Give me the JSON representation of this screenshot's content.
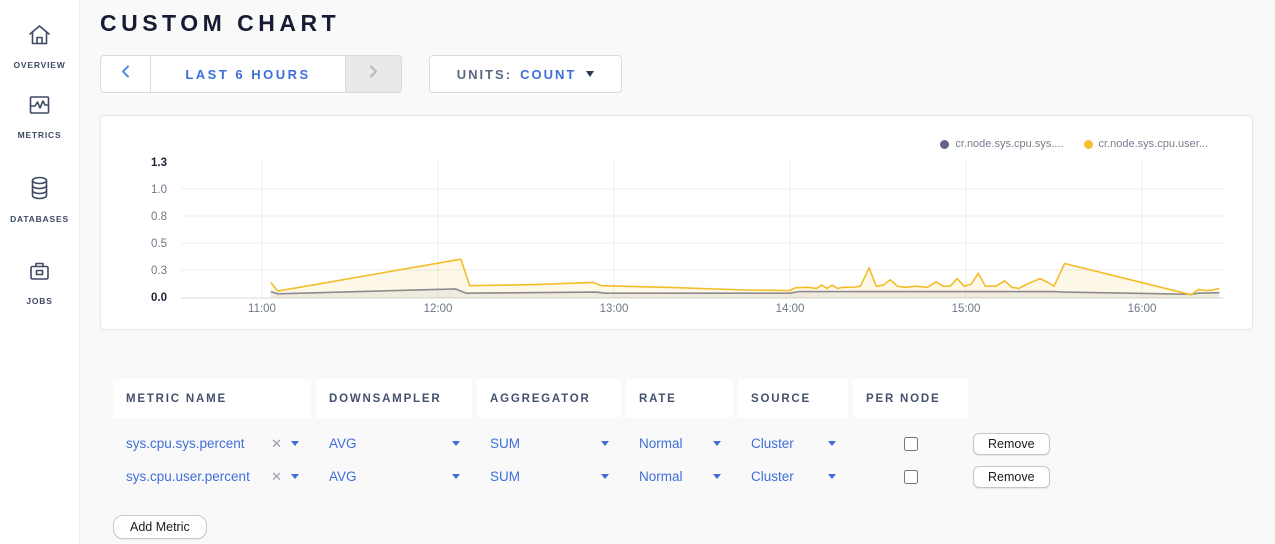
{
  "sidebar": {
    "items": [
      {
        "label": "OVERVIEW",
        "icon": "home-icon"
      },
      {
        "label": "METRICS",
        "icon": "metrics-icon"
      },
      {
        "label": "DATABASES",
        "icon": "databases-icon"
      },
      {
        "label": "JOBS",
        "icon": "jobs-icon"
      }
    ]
  },
  "header": {
    "title": "CUSTOM CHART"
  },
  "timepicker": {
    "label": "LAST 6 HOURS"
  },
  "units": {
    "label": "UNITS:",
    "value": "COUNT"
  },
  "chart_data": {
    "type": "line",
    "title": "",
    "xlabel": "",
    "ylabel": "",
    "x_range_hours": [
      10.54,
      16.47
    ],
    "ylim": [
      0,
      1.3
    ],
    "grid": true,
    "legend_position": "top-right",
    "y_ticks": [
      {
        "value": 0.0,
        "label": "0.0",
        "strong": true,
        "grid": false
      },
      {
        "value": 0.25,
        "label": "0.3",
        "strong": false,
        "grid": true
      },
      {
        "value": 0.5,
        "label": "0.5",
        "strong": false,
        "grid": true
      },
      {
        "value": 0.75,
        "label": "0.8",
        "strong": false,
        "grid": true
      },
      {
        "value": 1.0,
        "label": "1.0",
        "strong": false,
        "grid": true
      },
      {
        "value": 1.25,
        "label": "1.3",
        "strong": true,
        "grid": false
      }
    ],
    "x_ticks": [
      {
        "hour": 11,
        "label": "11:00"
      },
      {
        "hour": 12,
        "label": "12:00"
      },
      {
        "hour": 13,
        "label": "13:00"
      },
      {
        "hour": 14,
        "label": "14:00"
      },
      {
        "hour": 15,
        "label": "15:00"
      },
      {
        "hour": 16,
        "label": "16:00"
      }
    ],
    "series": [
      {
        "name": "cr.node.sys.cpu.sys....",
        "color": "#82869a",
        "dot_color": "#5d6687",
        "fill": "rgba(110,115,135,0.10)",
        "points": [
          [
            11.05,
            0.05
          ],
          [
            11.09,
            0.03
          ],
          [
            12.1,
            0.075
          ],
          [
            12.16,
            0.035
          ],
          [
            12.5,
            0.04
          ],
          [
            12.9,
            0.045
          ],
          [
            12.95,
            0.035
          ],
          [
            13.4,
            0.035
          ],
          [
            14.0,
            0.035
          ],
          [
            14.05,
            0.05
          ],
          [
            14.5,
            0.05
          ],
          [
            15.0,
            0.05
          ],
          [
            15.5,
            0.05
          ],
          [
            15.56,
            0.045
          ],
          [
            16.28,
            0.025
          ],
          [
            16.32,
            0.035
          ],
          [
            16.44,
            0.04
          ]
        ]
      },
      {
        "name": "cr.node.sys.cpu.user...",
        "color": "#f3bd2a",
        "dot_color": "#f5bf2b",
        "fill": "rgba(245,191,43,0.10)",
        "points": [
          [
            11.05,
            0.135
          ],
          [
            11.09,
            0.055
          ],
          [
            12.13,
            0.35
          ],
          [
            12.18,
            0.105
          ],
          [
            12.55,
            0.115
          ],
          [
            12.88,
            0.135
          ],
          [
            12.93,
            0.105
          ],
          [
            13.3,
            0.09
          ],
          [
            13.75,
            0.065
          ],
          [
            14.0,
            0.06
          ],
          [
            14.03,
            0.085
          ],
          [
            14.1,
            0.09
          ],
          [
            14.15,
            0.08
          ],
          [
            14.18,
            0.11
          ],
          [
            14.21,
            0.08
          ],
          [
            14.24,
            0.11
          ],
          [
            14.27,
            0.08
          ],
          [
            14.3,
            0.09
          ],
          [
            14.36,
            0.09
          ],
          [
            14.4,
            0.1
          ],
          [
            14.45,
            0.27
          ],
          [
            14.49,
            0.1
          ],
          [
            14.53,
            0.11
          ],
          [
            14.57,
            0.16
          ],
          [
            14.61,
            0.1
          ],
          [
            14.65,
            0.09
          ],
          [
            14.72,
            0.1
          ],
          [
            14.78,
            0.09
          ],
          [
            14.83,
            0.14
          ],
          [
            14.87,
            0.1
          ],
          [
            14.91,
            0.1
          ],
          [
            14.95,
            0.17
          ],
          [
            14.99,
            0.1
          ],
          [
            15.03,
            0.12
          ],
          [
            15.07,
            0.22
          ],
          [
            15.11,
            0.1
          ],
          [
            15.17,
            0.1
          ],
          [
            15.22,
            0.15
          ],
          [
            15.26,
            0.09
          ],
          [
            15.3,
            0.08
          ],
          [
            15.36,
            0.13
          ],
          [
            15.42,
            0.17
          ],
          [
            15.46,
            0.14
          ],
          [
            15.5,
            0.1
          ],
          [
            15.56,
            0.31
          ],
          [
            16.28,
            0.02
          ],
          [
            16.32,
            0.07
          ],
          [
            16.36,
            0.06
          ],
          [
            16.4,
            0.065
          ],
          [
            16.44,
            0.08
          ]
        ]
      }
    ]
  },
  "table": {
    "headers": [
      "METRIC NAME",
      "DOWNSAMPLER",
      "AGGREGATOR",
      "RATE",
      "SOURCE",
      "PER NODE"
    ],
    "rows": [
      {
        "name": "sys.cpu.sys.percent",
        "downsampler": "AVG",
        "aggregator": "SUM",
        "rate": "Normal",
        "source": "Cluster",
        "per_node_checked": false,
        "remove_label": "Remove"
      },
      {
        "name": "sys.cpu.user.percent",
        "downsampler": "AVG",
        "aggregator": "SUM",
        "rate": "Normal",
        "source": "Cluster",
        "per_node_checked": false,
        "remove_label": "Remove"
      }
    ],
    "add_metric_label": "Add Metric"
  },
  "colors": {
    "accent_blue": "#3e6fd9",
    "slate_text": "#44516c",
    "page_bg": "#f9f9f9",
    "panel_border": "#e7e7e7",
    "grid_line": "#ececec",
    "axis_strong": "#1c2436",
    "axis_muted": "#6e7787"
  }
}
